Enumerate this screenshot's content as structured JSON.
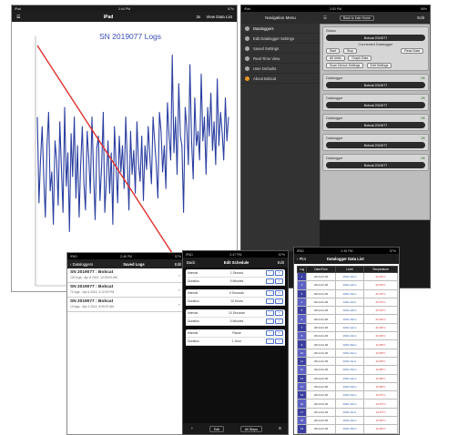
{
  "plot_screen": {
    "status_left": "iPad",
    "status_time": "2:44 PM",
    "status_right": "57%",
    "nav_title": "iPad",
    "nav_right_1": "3x",
    "nav_right_2": "View Data List",
    "chart_data": {
      "type": "line",
      "title": "SN 2019077 Logs",
      "series": [
        {
          "name": "",
          "color": "#2b3fa0",
          "values": [
            70,
            34,
            52,
            66,
            44,
            28,
            58,
            72,
            39,
            47,
            25,
            60,
            52,
            33,
            68,
            48,
            30,
            74,
            41,
            55,
            22,
            63,
            45,
            70,
            36,
            58,
            28,
            50,
            66,
            42,
            31,
            64,
            53,
            38,
            70,
            46,
            27,
            57,
            62,
            35,
            49,
            72,
            30,
            44,
            60,
            38,
            55,
            25,
            66,
            50,
            34,
            62,
            47,
            58,
            40,
            70,
            52,
            31,
            64,
            46,
            56,
            38,
            68,
            50,
            43,
            62,
            35,
            58,
            48,
            66,
            54,
            42,
            70,
            60,
            50,
            36,
            72,
            64,
            47,
            58,
            40,
            76,
            62,
            52,
            96,
            55,
            70,
            46,
            84,
            62,
            58,
            30,
            74,
            66,
            50,
            92,
            60,
            44,
            78,
            58,
            64,
            52,
            88,
            60,
            70,
            46,
            74,
            62,
            80,
            56,
            68,
            50,
            86,
            58,
            72,
            64,
            52,
            78,
            60,
            70
          ]
        },
        {
          "name": "",
          "color": "#e03030",
          "values": [
            100,
            0
          ]
        }
      ],
      "ylim": [
        0,
        100
      ],
      "grid": false
    }
  },
  "menu_screen": {
    "status_left": "iPad",
    "status_time": "2:53 PM",
    "status_right": "55%",
    "header_title": "Navigation Menu",
    "header_btn": "Back to Instr Home",
    "header_right": "Edit",
    "items": [
      {
        "label": "Dataloggers"
      },
      {
        "label": "Edit Datalogger Settings"
      },
      {
        "label": "Saved Settings"
      },
      {
        "label": "Real-Time View"
      },
      {
        "label": "User Defaults"
      },
      {
        "label": "About Bobcat"
      }
    ],
    "detail": {
      "status_label": "Status",
      "status_pill": "Bobcat 2019077",
      "selected_label": "Connected Datalogger",
      "buttons": [
        "Start",
        "Stop",
        "Read Data"
      ],
      "buttons2": [
        "All Units",
        "Graph Data"
      ],
      "buttons3": [
        "Scan Device Settings",
        "Edit Settings"
      ],
      "cards": [
        {
          "label": "Datalogger",
          "value": "OK",
          "pill": "Bobcat 2019077"
        },
        {
          "label": "Datalogger",
          "value": "OK",
          "pill": "Bobcat 2019077"
        },
        {
          "label": "Datalogger",
          "value": "OK",
          "pill": "Bobcat 2019077"
        },
        {
          "label": "Datalogger",
          "value": "OK",
          "pill": "Bobcat 2019077"
        },
        {
          "label": "Datalogger",
          "value": "OK",
          "pill": "Bobcat 2019077"
        }
      ]
    }
  },
  "logs_screen": {
    "status_left": "IPAD",
    "status_time": "2:48 PM",
    "status_right": "57%",
    "back_label": "Dataloggers",
    "title": "Saved Logs",
    "right": "Edit",
    "rows": [
      {
        "title": "SN 2019077 : Bobcat",
        "sub": "120 logs - Apr 6 2014, 10:30:00 AM"
      },
      {
        "title": "SN 2019077 : Bobcat",
        "sub": "72 logs - Apr 6 2014, 3:12:00 PM"
      },
      {
        "title": "SN 2019077 : Bobcat",
        "sub": "10 logs - Apr 4 2014, 8:05:00 AM"
      }
    ]
  },
  "sched_screen": {
    "status_left": "IPAD",
    "status_time": "2:47 PM",
    "status_right": "57%",
    "left": "Back",
    "title": "Edit Schedule",
    "right": "Edit",
    "groups": [
      {
        "rows": [
          {
            "k": "Interval",
            "v": "1 Second"
          },
          {
            "k": "Duration",
            "v": "5 Minutes"
          }
        ]
      },
      {
        "rows": [
          {
            "k": "Interval",
            "v": "5 Seconds"
          },
          {
            "k": "Duration",
            "v": "10 Hours"
          }
        ]
      },
      {
        "rows": [
          {
            "k": "Interval",
            "v": "10 Seconds"
          },
          {
            "k": "Duration",
            "v": "5 Minutes"
          }
        ]
      },
      {
        "rows": [
          {
            "k": "Interval",
            "v": "Pause"
          },
          {
            "k": "Duration",
            "v": "1 Hour"
          }
        ]
      }
    ],
    "bottom": [
      "+",
      "Edit",
      "All Steps",
      "☰"
    ]
  },
  "dlist_screen": {
    "status_left": "IPAD",
    "status_time": "2:45 PM",
    "status_right": "57%",
    "back": "Plot",
    "title": "Datalogger Data List",
    "columns": [
      "Log",
      "Date/Time",
      "Level",
      "Temperature"
    ],
    "rows": [
      {
        "n": "1",
        "d": "2014-04-06",
        "l": "1001.14cm",
        "t": "20.02°C"
      },
      {
        "n": "2",
        "d": "2014-04-06",
        "l": "1001.12cm",
        "t": "20.02°C"
      },
      {
        "n": "3",
        "d": "2014-04-06",
        "l": "1001.15cm",
        "t": "20.01°C"
      },
      {
        "n": "4",
        "d": "2014-04-06",
        "l": "1001.11cm",
        "t": "20.01°C"
      },
      {
        "n": "5",
        "d": "2014-04-06",
        "l": "1001.10cm",
        "t": "20.01°C"
      },
      {
        "n": "6",
        "d": "2014-04-06",
        "l": "1001.16cm",
        "t": "20.00°C"
      },
      {
        "n": "7",
        "d": "2014-04-06",
        "l": "1001.12cm",
        "t": "20.00°C"
      },
      {
        "n": "8",
        "d": "2014-04-06",
        "l": "1001.13cm",
        "t": "20.00°C"
      },
      {
        "n": "9",
        "d": "2014-04-06",
        "l": "1001.09cm",
        "t": "19.99°C"
      },
      {
        "n": "10",
        "d": "2014-04-06",
        "l": "1001.14cm",
        "t": "19.99°C"
      },
      {
        "n": "11",
        "d": "2014-04-06",
        "l": "1001.11cm",
        "t": "19.99°C"
      },
      {
        "n": "12",
        "d": "2014-04-06",
        "l": "1001.15cm",
        "t": "19.98°C"
      },
      {
        "n": "13",
        "d": "2014-04-06",
        "l": "1001.12cm",
        "t": "19.98°C"
      },
      {
        "n": "14",
        "d": "2014-04-06",
        "l": "1001.10cm",
        "t": "19.98°C"
      },
      {
        "n": "15",
        "d": "2014-04-06",
        "l": "1001.13cm",
        "t": "19.97°C"
      },
      {
        "n": "16",
        "d": "2014-04-06",
        "l": "1001.14cm",
        "t": "19.97°C"
      },
      {
        "n": "17",
        "d": "2014-04-06",
        "l": "1001.11cm",
        "t": "19.97°C"
      },
      {
        "n": "18",
        "d": "2014-04-06",
        "l": "1001.12cm",
        "t": "19.96°C"
      },
      {
        "n": "19",
        "d": "2014-04-06",
        "l": "1001.15cm",
        "t": "19.96°C"
      }
    ]
  }
}
